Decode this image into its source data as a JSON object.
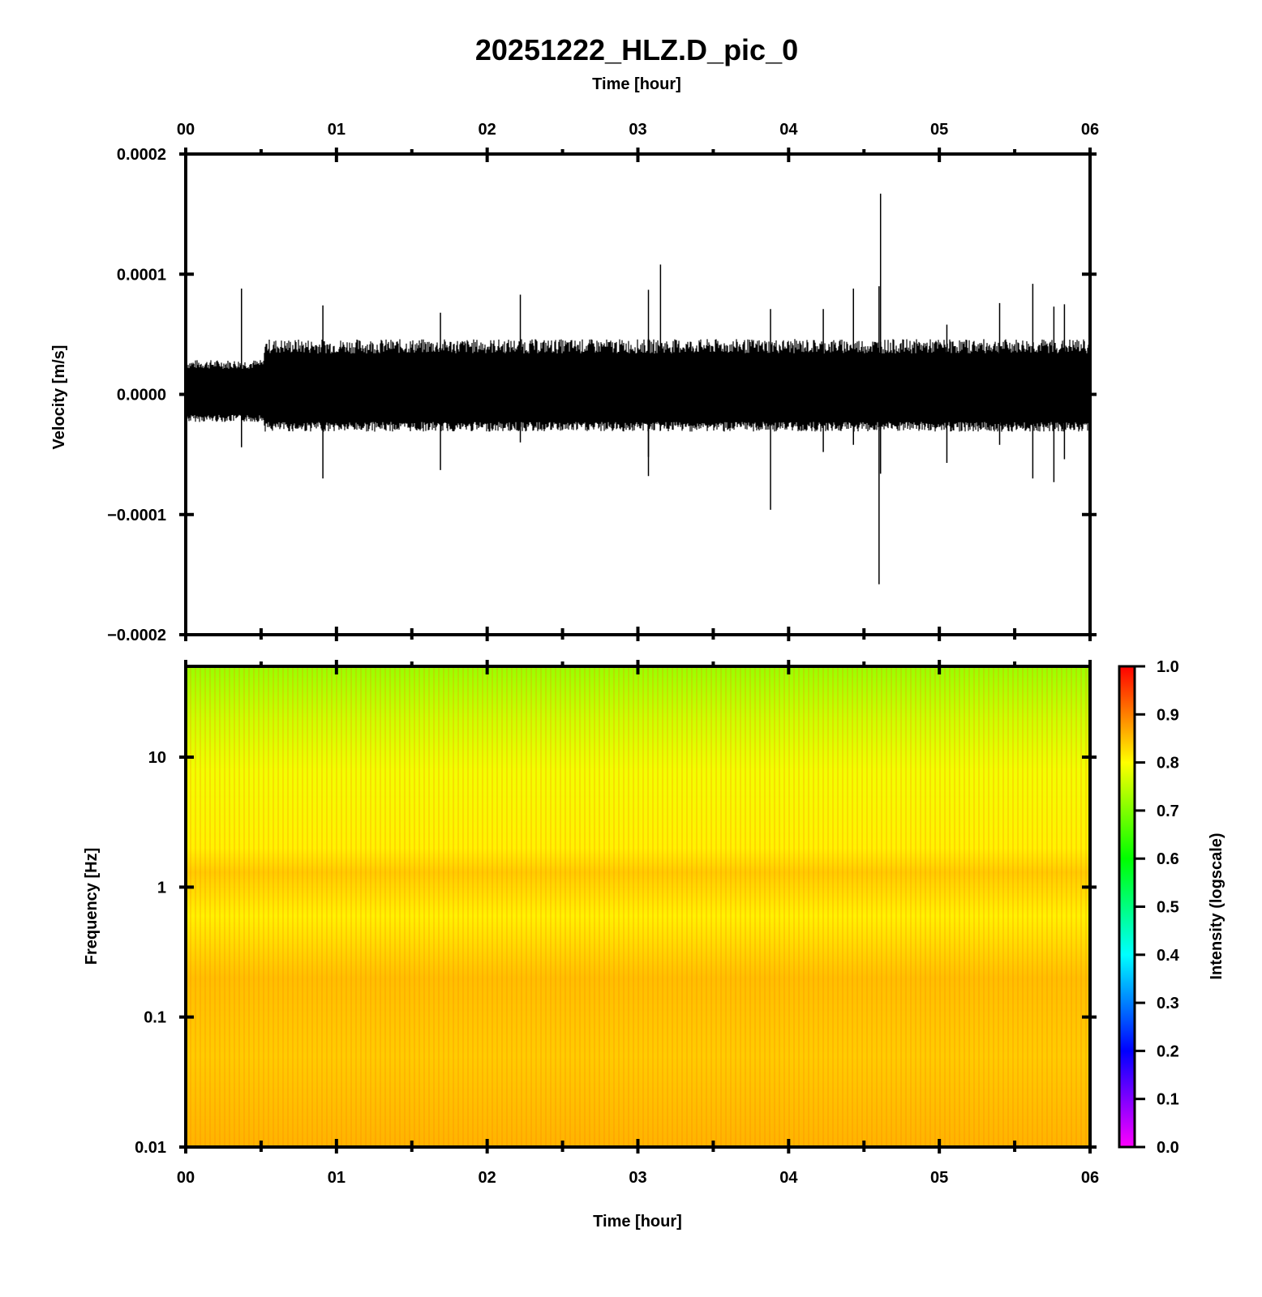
{
  "figure": {
    "title": "20251222_HLZ.D_pic_0"
  },
  "chart_data": [
    {
      "type": "line",
      "name": "waveform",
      "xlabel": "Time [hour]",
      "ylabel": "Velocity [m/s]",
      "xlim": [
        0,
        6
      ],
      "ylim": [
        -0.0002,
        0.0002
      ],
      "x_ticks": [
        "00",
        "01",
        "02",
        "03",
        "04",
        "05",
        "06"
      ],
      "y_ticks": [
        "0.0002",
        "0.0001",
        "0.0000",
        "−0.0001",
        "−0.0002"
      ],
      "y_tick_values": [
        0.0002,
        0.0001,
        0.0,
        -0.0001,
        -0.0002
      ],
      "series_color": "#000000",
      "noise_band": [
        {
          "x_start": 0.0,
          "x_end": 0.52,
          "upper": 2.5e-05,
          "lower": -2e-05
        },
        {
          "x_start": 0.52,
          "x_end": 6.0,
          "upper": 4e-05,
          "lower": -2.7e-05
        }
      ],
      "spikes": [
        {
          "x": 0.37,
          "max": 8.8e-05,
          "min": -4.4e-05
        },
        {
          "x": 0.91,
          "max": 7.4e-05,
          "min": -7e-05
        },
        {
          "x": 1.69,
          "max": 6.8e-05,
          "min": -6.3e-05
        },
        {
          "x": 2.22,
          "max": 8.3e-05,
          "min": -4e-05
        },
        {
          "x": 3.07,
          "max": 4.6e-05,
          "min": -5.2e-05
        },
        {
          "x": 3.07,
          "max": 8.7e-05,
          "min": -6.8e-05
        },
        {
          "x": 3.15,
          "max": 0.000108,
          "min": -3e-05
        },
        {
          "x": 3.88,
          "max": 7.1e-05,
          "min": -9.6e-05
        },
        {
          "x": 4.23,
          "max": 7.1e-05,
          "min": -4.8e-05
        },
        {
          "x": 4.43,
          "max": 8.8e-05,
          "min": -4.2e-05
        },
        {
          "x": 4.6,
          "max": 9e-05,
          "min": -0.000158
        },
        {
          "x": 4.61,
          "max": 0.000167,
          "min": -6.6e-05
        },
        {
          "x": 5.05,
          "max": 5.8e-05,
          "min": -5.7e-05
        },
        {
          "x": 5.4,
          "max": 7.6e-05,
          "min": -4.2e-05
        },
        {
          "x": 5.62,
          "max": 9.2e-05,
          "min": -7e-05
        },
        {
          "x": 5.76,
          "max": 7.3e-05,
          "min": -7.3e-05
        },
        {
          "x": 5.83,
          "max": 7.5e-05,
          "min": -5.4e-05
        }
      ]
    },
    {
      "type": "heatmap",
      "name": "spectrogram",
      "xlabel": "Time [hour]",
      "ylabel": "Frequency [Hz]",
      "xlim": [
        0,
        6
      ],
      "ylim": [
        0.01,
        50
      ],
      "yscale": "log",
      "x_ticks": [
        "00",
        "01",
        "02",
        "03",
        "04",
        "05",
        "06"
      ],
      "y_ticks": [
        "10",
        "1",
        "0.1",
        "0.01"
      ],
      "y_tick_values": [
        10,
        1,
        0.1,
        0.01
      ],
      "intensity_profile": [
        {
          "freq": 50,
          "intensity": 0.72
        },
        {
          "freq": 20,
          "intensity": 0.76
        },
        {
          "freq": 8,
          "intensity": 0.79
        },
        {
          "freq": 2,
          "intensity": 0.81
        },
        {
          "freq": 1.3,
          "intensity": 0.84
        },
        {
          "freq": 0.6,
          "intensity": 0.81
        },
        {
          "freq": 0.2,
          "intensity": 0.85
        },
        {
          "freq": 0.05,
          "intensity": 0.84
        },
        {
          "freq": 0.01,
          "intensity": 0.86
        }
      ],
      "colorbar": {
        "label": "Intensity (logscale)",
        "range": [
          0.0,
          1.0
        ],
        "ticks": [
          "1.0",
          "0.9",
          "0.8",
          "0.7",
          "0.6",
          "0.5",
          "0.4",
          "0.3",
          "0.2",
          "0.1",
          "0.0"
        ],
        "tick_values": [
          1.0,
          0.9,
          0.8,
          0.7,
          0.6,
          0.5,
          0.4,
          0.3,
          0.2,
          0.1,
          0.0
        ],
        "colormap": [
          "#ff00ff",
          "#0000ff",
          "#00ffff",
          "#00ff00",
          "#ffff00",
          "#ff0000"
        ]
      }
    }
  ]
}
